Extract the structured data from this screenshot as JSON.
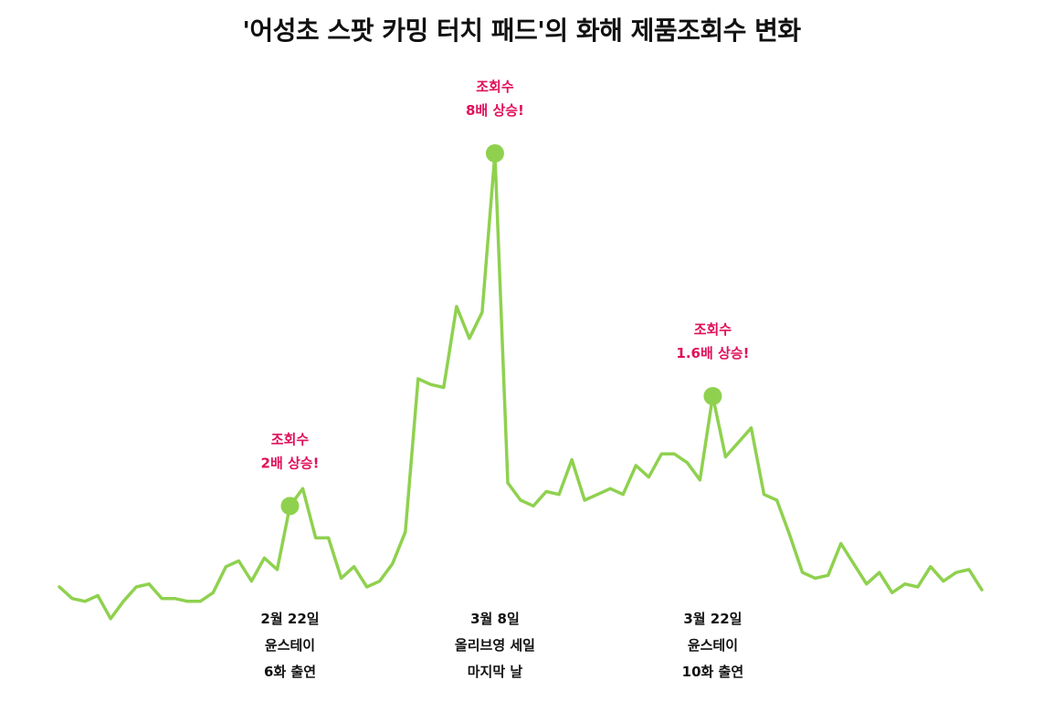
{
  "chart_data": {
    "type": "line",
    "title": "'어성초 스팟 카밍 터치 패드'의 화해 제품조회수 변화",
    "xlabel": "",
    "ylabel": "",
    "grid": false,
    "legend": "none",
    "colors": {
      "line": "#8fd14f",
      "peak_note": "#e0105a",
      "event_note": "#111111"
    },
    "series": [
      {
        "values": [
          8,
          4,
          3,
          5,
          -3,
          3,
          8,
          9,
          4,
          4,
          3,
          3,
          6,
          15,
          17,
          10,
          18,
          14,
          36,
          42,
          25,
          25,
          11,
          15,
          8,
          10,
          16,
          27,
          80,
          78,
          77,
          105,
          94,
          103,
          158,
          44,
          38,
          36,
          41,
          40,
          52,
          38,
          40,
          42,
          40,
          50,
          46,
          54,
          54,
          51,
          45,
          74,
          53,
          58,
          63,
          40,
          38,
          26,
          13,
          11,
          12,
          23,
          16,
          9,
          13,
          6,
          9,
          8,
          15,
          10,
          13,
          14,
          7
        ],
        "peaks": [
          {
            "index": 18,
            "value": 36,
            "note": [
              "조회수",
              "2배 상승!"
            ]
          },
          {
            "index": 34,
            "value": 158,
            "note": [
              "조회수",
              "8배 상승!"
            ]
          },
          {
            "index": 51,
            "value": 74,
            "note": [
              "조회수",
              "1.6배 상승!"
            ]
          }
        ]
      }
    ],
    "ylim": [
      -10,
      170
    ],
    "events": [
      {
        "index": 18,
        "lines": [
          "2월 22일",
          "윤스테이",
          "6화 출연"
        ]
      },
      {
        "index": 34,
        "lines": [
          "3월 8일",
          "올리브영 세일",
          "마지막 날"
        ]
      },
      {
        "index": 51,
        "lines": [
          "3월 22일",
          "윤스테이",
          "10화 출연"
        ]
      }
    ]
  }
}
